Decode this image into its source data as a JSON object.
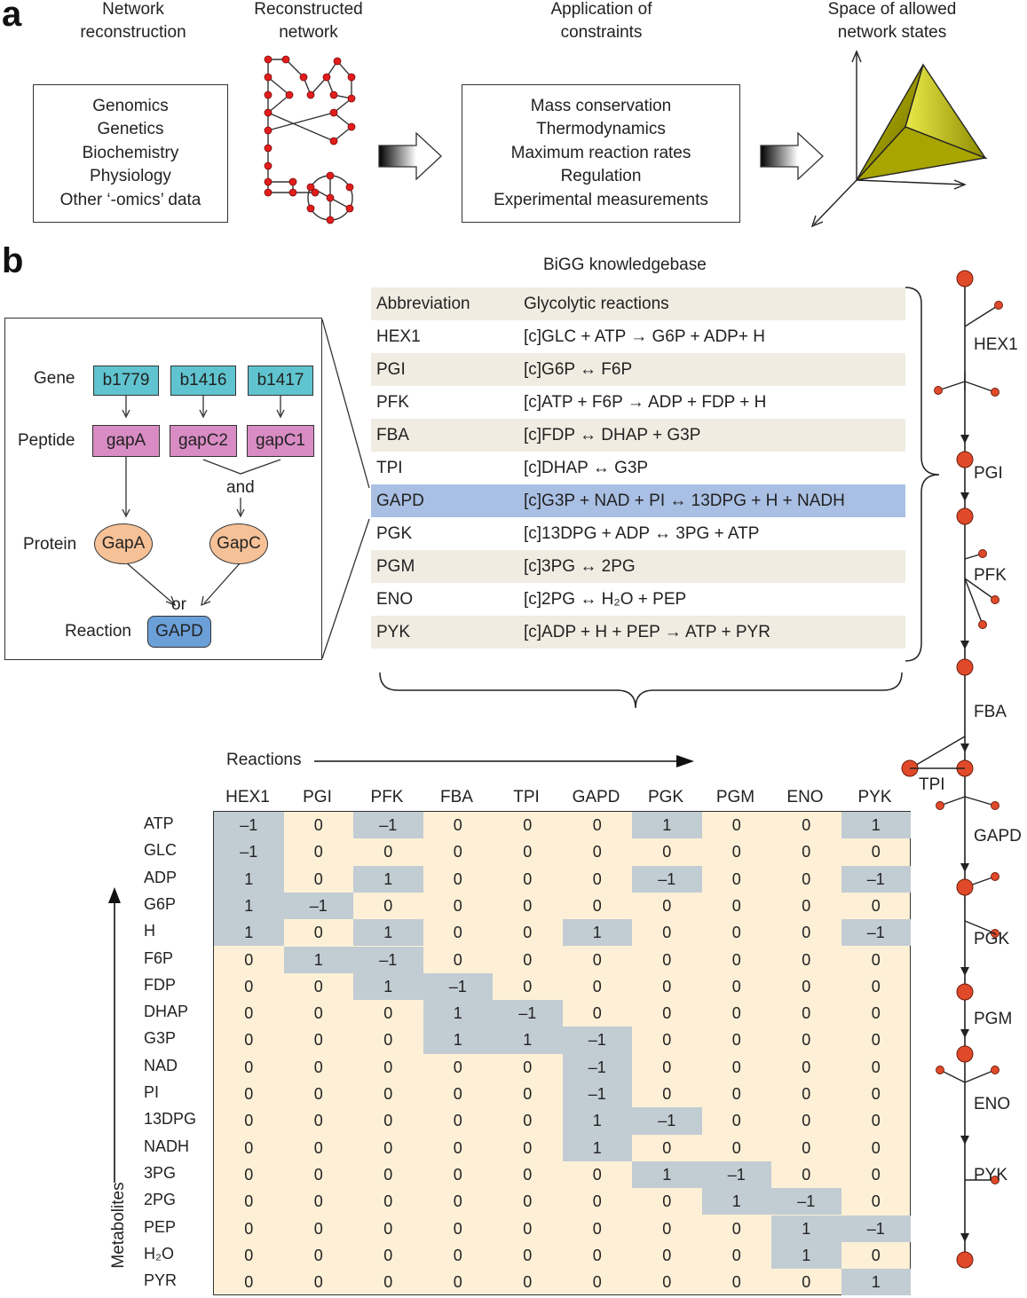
{
  "panel_a": {
    "letter": "a",
    "headers": {
      "reconstruction": [
        "Network",
        "reconstruction"
      ],
      "reconstructed": [
        "Reconstructed",
        "network"
      ],
      "constraints": [
        "Application of",
        "constraints"
      ],
      "space": [
        "Space of allowed",
        "network states"
      ]
    },
    "sources": [
      "Genomics",
      "Genetics",
      "Biochemistry",
      "Physiology",
      "Other ‘-omics’ data"
    ],
    "constraint_list": [
      "Mass conservation",
      "Thermodynamics",
      "Maximum reaction rates",
      "Regulation",
      "Experimental measurements"
    ]
  },
  "panel_b": {
    "letter": "b",
    "kb_title": "BiGG knowledgebase",
    "gpr": {
      "row_labels": {
        "gene": "Gene",
        "peptide": "Peptide",
        "protein": "Protein",
        "reaction": "Reaction"
      },
      "genes": [
        "b1779",
        "b1416",
        "b1417"
      ],
      "peptides": [
        "gapA",
        "gapC2",
        "gapC1"
      ],
      "and_label": "and",
      "proteins": [
        "GapA",
        "GapC"
      ],
      "or_label": "or",
      "reaction": "GAPD"
    },
    "reactions_header": {
      "abbr": "Abbreviation",
      "rxn": "Glycolytic reactions"
    },
    "reactions": [
      {
        "abbr": "HEX1",
        "pre": "[c]GLC + ATP",
        "arrow": "→",
        "post": "G6P + ADP+ H"
      },
      {
        "abbr": "PGI",
        "pre": "[c]G6P",
        "arrow": "↔",
        "post": "F6P"
      },
      {
        "abbr": "PFK",
        "pre": "[c]ATP + F6P",
        "arrow": "→",
        "post": "ADP + FDP + H"
      },
      {
        "abbr": "FBA",
        "pre": "[c]FDP",
        "arrow": "↔",
        "post": "DHAP + G3P"
      },
      {
        "abbr": "TPI",
        "pre": "[c]DHAP",
        "arrow": "↔",
        "post": "G3P"
      },
      {
        "abbr": "GAPD",
        "pre": "[c]G3P + NAD + PI",
        "arrow": "↔",
        "post": "13DPG + H + NADH"
      },
      {
        "abbr": "PGK",
        "pre": "[c]13DPG + ADP",
        "arrow": "↔",
        "post": "3PG + ATP"
      },
      {
        "abbr": "PGM",
        "pre": "[c]3PG",
        "arrow": "↔",
        "post": "2PG"
      },
      {
        "abbr": "ENO",
        "pre": "[c]2PG",
        "arrow": "↔",
        "post": "H₂O + PEP"
      },
      {
        "abbr": "PYK",
        "pre": "[c]ADP + H + PEP",
        "arrow": "→",
        "post": "ATP + PYR"
      }
    ],
    "matrix": {
      "reactions_label": "Reactions",
      "metabolites_label": "Metabolites",
      "columns": [
        "HEX1",
        "PGI",
        "PFK",
        "FBA",
        "TPI",
        "GAPD",
        "PGK",
        "PGM",
        "ENO",
        "PYK"
      ],
      "rows": [
        {
          "met": "ATP",
          "v": [
            "–1",
            "0",
            "–1",
            "0",
            "0",
            "0",
            "1",
            "0",
            "0",
            "1"
          ]
        },
        {
          "met": "GLC",
          "v": [
            "–1",
            "0",
            "0",
            "0",
            "0",
            "0",
            "0",
            "0",
            "0",
            "0"
          ]
        },
        {
          "met": "ADP",
          "v": [
            "1",
            "0",
            "1",
            "0",
            "0",
            "0",
            "–1",
            "0",
            "0",
            "–1"
          ]
        },
        {
          "met": "G6P",
          "v": [
            "1",
            "–1",
            "0",
            "0",
            "0",
            "0",
            "0",
            "0",
            "0",
            "0"
          ]
        },
        {
          "met": "H",
          "v": [
            "1",
            "0",
            "1",
            "0",
            "0",
            "1",
            "0",
            "0",
            "0",
            "–1"
          ]
        },
        {
          "met": "F6P",
          "v": [
            "0",
            "1",
            "–1",
            "0",
            "0",
            "0",
            "0",
            "0",
            "0",
            "0"
          ]
        },
        {
          "met": "FDP",
          "v": [
            "0",
            "0",
            "1",
            "–1",
            "0",
            "0",
            "0",
            "0",
            "0",
            "0"
          ]
        },
        {
          "met": "DHAP",
          "v": [
            "0",
            "0",
            "0",
            "1",
            "–1",
            "0",
            "0",
            "0",
            "0",
            "0"
          ]
        },
        {
          "met": "G3P",
          "v": [
            "0",
            "0",
            "0",
            "1",
            "1",
            "–1",
            "0",
            "0",
            "0",
            "0"
          ]
        },
        {
          "met": "NAD",
          "v": [
            "0",
            "0",
            "0",
            "0",
            "0",
            "–1",
            "0",
            "0",
            "0",
            "0"
          ]
        },
        {
          "met": "PI",
          "v": [
            "0",
            "0",
            "0",
            "0",
            "0",
            "–1",
            "0",
            "0",
            "0",
            "0"
          ]
        },
        {
          "met": "13DPG",
          "v": [
            "0",
            "0",
            "0",
            "0",
            "0",
            "1",
            "–1",
            "0",
            "0",
            "0"
          ]
        },
        {
          "met": "NADH",
          "v": [
            "0",
            "0",
            "0",
            "0",
            "0",
            "1",
            "0",
            "0",
            "0",
            "0"
          ]
        },
        {
          "met": "3PG",
          "v": [
            "0",
            "0",
            "0",
            "0",
            "0",
            "0",
            "1",
            "–1",
            "0",
            "0"
          ]
        },
        {
          "met": "2PG",
          "v": [
            "0",
            "0",
            "0",
            "0",
            "0",
            "0",
            "0",
            "1",
            "–1",
            "0"
          ]
        },
        {
          "met": "PEP",
          "v": [
            "0",
            "0",
            "0",
            "0",
            "0",
            "0",
            "0",
            "0",
            "1",
            "–1"
          ]
        },
        {
          "met": "H₂O",
          "v": [
            "0",
            "0",
            "0",
            "0",
            "0",
            "0",
            "0",
            "0",
            "1",
            "0"
          ]
        },
        {
          "met": "PYR",
          "v": [
            "0",
            "0",
            "0",
            "0",
            "0",
            "0",
            "0",
            "0",
            "0",
            "1"
          ]
        }
      ],
      "shaded": [
        [
          0,
          0
        ],
        [
          0,
          2
        ],
        [
          0,
          6
        ],
        [
          0,
          9
        ],
        [
          1,
          0
        ],
        [
          2,
          0
        ],
        [
          2,
          2
        ],
        [
          2,
          6
        ],
        [
          2,
          9
        ],
        [
          3,
          0
        ],
        [
          3,
          1
        ],
        [
          4,
          0
        ],
        [
          4,
          2
        ],
        [
          4,
          5
        ],
        [
          4,
          9
        ],
        [
          5,
          1
        ],
        [
          5,
          2
        ],
        [
          6,
          2
        ],
        [
          6,
          3
        ],
        [
          7,
          3
        ],
        [
          7,
          4
        ],
        [
          8,
          3
        ],
        [
          8,
          4
        ],
        [
          8,
          5
        ],
        [
          9,
          5
        ],
        [
          10,
          5
        ],
        [
          11,
          5
        ],
        [
          11,
          6
        ],
        [
          12,
          5
        ],
        [
          13,
          6
        ],
        [
          13,
          7
        ],
        [
          14,
          7
        ],
        [
          14,
          8
        ],
        [
          15,
          8
        ],
        [
          15,
          9
        ],
        [
          16,
          8
        ],
        [
          17,
          9
        ]
      ]
    },
    "pathway_labels": [
      "HEX1",
      "PGI",
      "PFK",
      "FBA",
      "TPI",
      "GAPD",
      "PGK",
      "PGM",
      "ENO",
      "PYK"
    ],
    "colors": {
      "gene": "#5fc4cf",
      "peptide": "#d98cc4",
      "protein": "#f6c197",
      "reaction": "#6b9fd8",
      "matrix_bg": "#fdf0d6",
      "matrix_shade": "#c2ccd3",
      "node": "#e04a2a",
      "highlight_row": "#a9bfe3"
    }
  }
}
